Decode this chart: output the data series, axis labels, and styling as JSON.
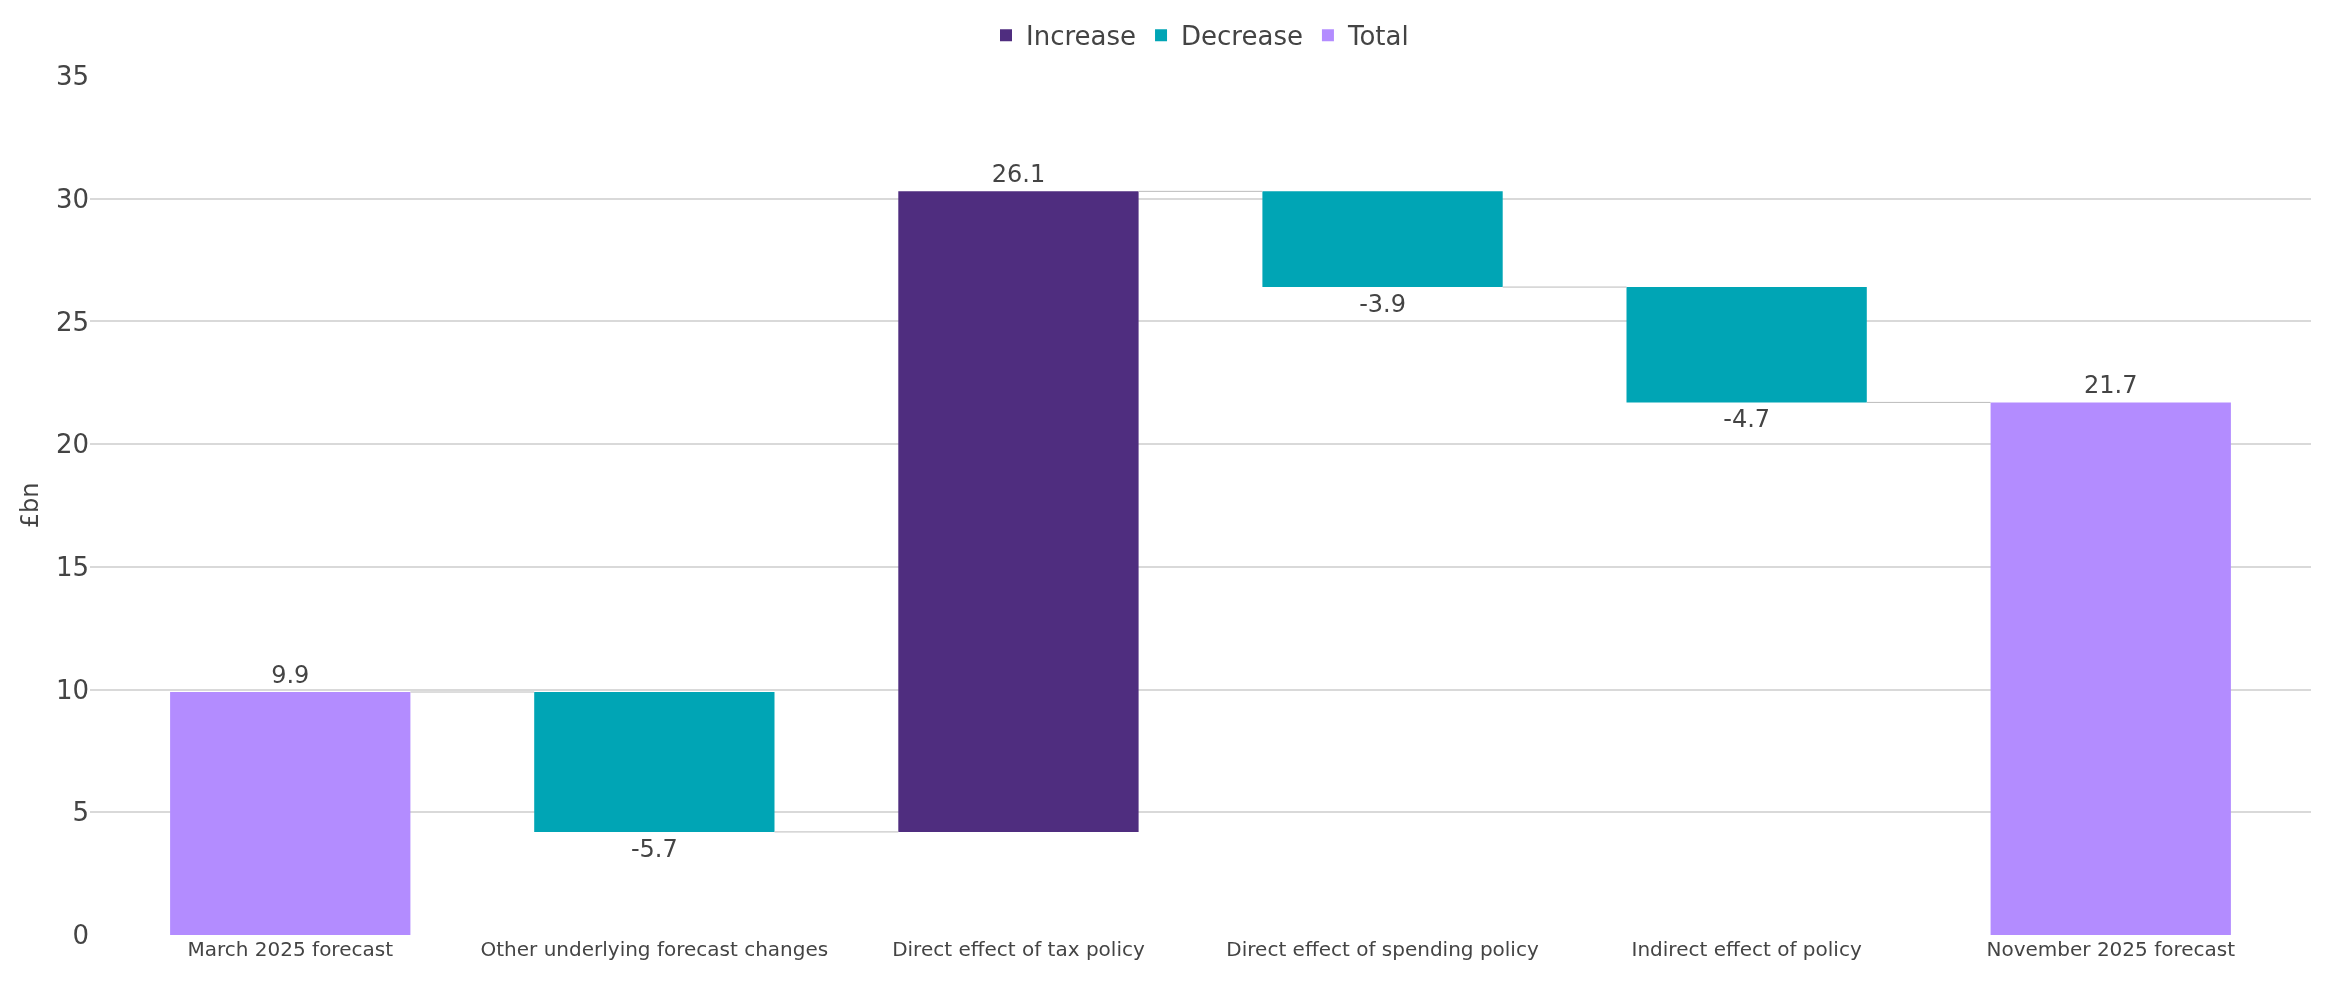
{
  "chart_data": {
    "type": "bar",
    "ylabel": "£bn",
    "categories": [
      "March 2025 forecast",
      "Other underlying forecast changes",
      "Direct effect of tax policy",
      "Direct effect of spending policy",
      "Indirect effect of policy",
      "November 2025 forecast"
    ],
    "series": [
      {
        "name": "Increase",
        "color": "#4f2d7f",
        "values": [
          null,
          null,
          26.1,
          null,
          null,
          null
        ],
        "base": [
          null,
          null,
          4.2,
          null,
          null,
          null
        ]
      },
      {
        "name": "Decrease",
        "color": "#00a5b5",
        "values": [
          null,
          -5.7,
          null,
          -3.9,
          -4.7,
          null
        ],
        "base": [
          null,
          9.9,
          null,
          30.3,
          26.4,
          null
        ]
      },
      {
        "name": "Total",
        "color": "#b38cff",
        "values": [
          9.9,
          null,
          null,
          null,
          null,
          21.7
        ],
        "base": [
          0,
          null,
          null,
          null,
          null,
          0
        ]
      }
    ],
    "ylim": [
      0,
      35
    ],
    "yticks": [
      0,
      5,
      10,
      15,
      20,
      25,
      30,
      35
    ],
    "grid": "y",
    "legend": "top",
    "data_labels": true
  }
}
